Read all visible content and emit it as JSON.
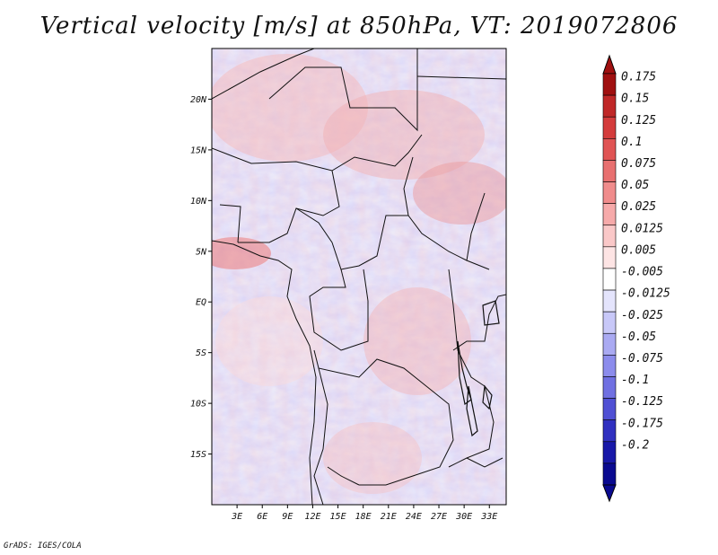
{
  "title": "Vertical velocity [m/s] at 850hPa, VT: 2019072806",
  "credit": "GrADS: IGES/COLA",
  "map": {
    "lon_range": [
      0,
      35
    ],
    "lat_range": [
      -20,
      25
    ],
    "lon_ticks": [
      "3E",
      "6E",
      "9E",
      "12E",
      "15E",
      "18E",
      "21E",
      "24E",
      "27E",
      "30E",
      "33E"
    ],
    "lat_ticks": [
      "20N",
      "15N",
      "10N",
      "5N",
      "EQ",
      "5S",
      "10S",
      "15S"
    ]
  },
  "colorbar": {
    "labels": [
      "0.175",
      "0.15",
      "0.125",
      "0.1",
      "0.075",
      "0.05",
      "0.025",
      "0.0125",
      "0.005",
      "-0.005",
      "-0.0125",
      "-0.025",
      "-0.05",
      "-0.075",
      "-0.1",
      "-0.125",
      "-0.175",
      "-0.2"
    ],
    "colors": [
      "#a01010",
      "#c02828",
      "#d43c3c",
      "#e05454",
      "#e87070",
      "#f08c8c",
      "#f6aaaa",
      "#fac8c8",
      "#fde4e4",
      "#ffffff",
      "#e4e4fc",
      "#c8c8f8",
      "#aaaaf2",
      "#8c8cec",
      "#7070e2",
      "#5050d4",
      "#3030c0",
      "#1818a8",
      "#0a0a90"
    ]
  }
}
